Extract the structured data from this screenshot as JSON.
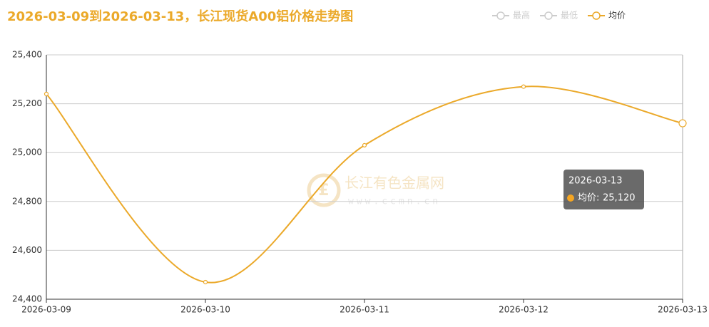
{
  "chart_data": {
    "type": "line",
    "title": "2026-03-09到2026-03-13，长江现货A00铝价格走势图",
    "legend": [
      {
        "name": "最高",
        "active": false
      },
      {
        "name": "最低",
        "active": false
      },
      {
        "name": "均价",
        "active": true
      }
    ],
    "categories": [
      "2026-03-09",
      "2026-03-10",
      "2026-03-11",
      "2026-03-12",
      "2026-03-13"
    ],
    "series": [
      {
        "name": "均价",
        "color": "#eba92a",
        "values": [
          25240,
          24470,
          25030,
          25270,
          25120
        ],
        "value_labels": [
          null,
          null,
          null,
          null,
          "25,120"
        ]
      }
    ],
    "ylim": [
      24400,
      25400
    ],
    "yticks": [
      {
        "value": 24400,
        "label": "24,400"
      },
      {
        "value": 24600,
        "label": "24,600"
      },
      {
        "value": 24800,
        "label": "24,800"
      },
      {
        "value": 25000,
        "label": "25,000"
      },
      {
        "value": 25200,
        "label": "25,200"
      },
      {
        "value": 25400,
        "label": "25,400"
      }
    ],
    "grid": true,
    "smooth": true,
    "watermark": {
      "name": "长江有色金属网",
      "url": "www.ccmn.cn"
    }
  }
}
